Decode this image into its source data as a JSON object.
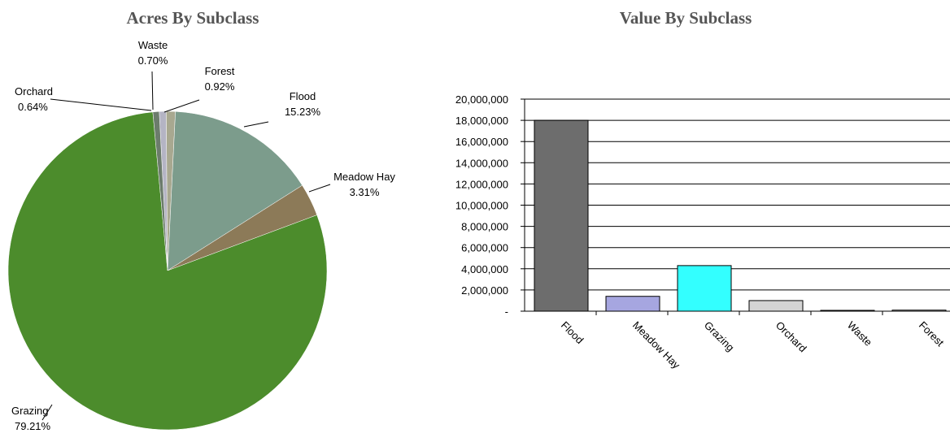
{
  "chart_data": [
    {
      "type": "pie",
      "title": "Acres By Subclass",
      "categories": [
        "Waste",
        "Forest",
        "Flood",
        "Meadow Hay",
        "Grazing",
        "Orchard"
      ],
      "values": [
        0.7,
        0.92,
        15.23,
        3.31,
        79.21,
        0.64
      ],
      "value_labels": [
        "0.70%",
        "0.92%",
        "15.23%",
        "3.31%",
        "79.21%",
        "0.64%"
      ],
      "colors": [
        "#b4b4c4",
        "#a8a890",
        "#7c9c8c",
        "#8c7a58",
        "#4c8c2c",
        "#6c7c6c"
      ]
    },
    {
      "type": "bar",
      "title": "Value By Subclass",
      "categories": [
        "Flood",
        "Meadow Hay",
        "Grazing",
        "Orchard",
        "Waste",
        "Forest"
      ],
      "values": [
        18000000,
        1400000,
        4300000,
        1000000,
        80000,
        100000
      ],
      "colors": [
        "#6d6d6d",
        "#a6a6e0",
        "#33ffff",
        "#d4d4d4",
        "#e0e0e0",
        "#e0e0e0"
      ],
      "ylim": [
        0,
        20000000
      ],
      "yticks": [
        {
          "value": 0,
          "label": "-"
        },
        {
          "value": 2000000,
          "label": "2,000,000"
        },
        {
          "value": 4000000,
          "label": "4,000,000"
        },
        {
          "value": 6000000,
          "label": "6,000,000"
        },
        {
          "value": 8000000,
          "label": "8,000,000"
        },
        {
          "value": 10000000,
          "label": "10,000,000"
        },
        {
          "value": 12000000,
          "label": "12,000,000"
        },
        {
          "value": 14000000,
          "label": "14,000,000"
        },
        {
          "value": 16000000,
          "label": "16,000,000"
        },
        {
          "value": 18000000,
          "label": "18,000,000"
        },
        {
          "value": 20000000,
          "label": "20,000,000"
        }
      ],
      "grid": true
    }
  ]
}
